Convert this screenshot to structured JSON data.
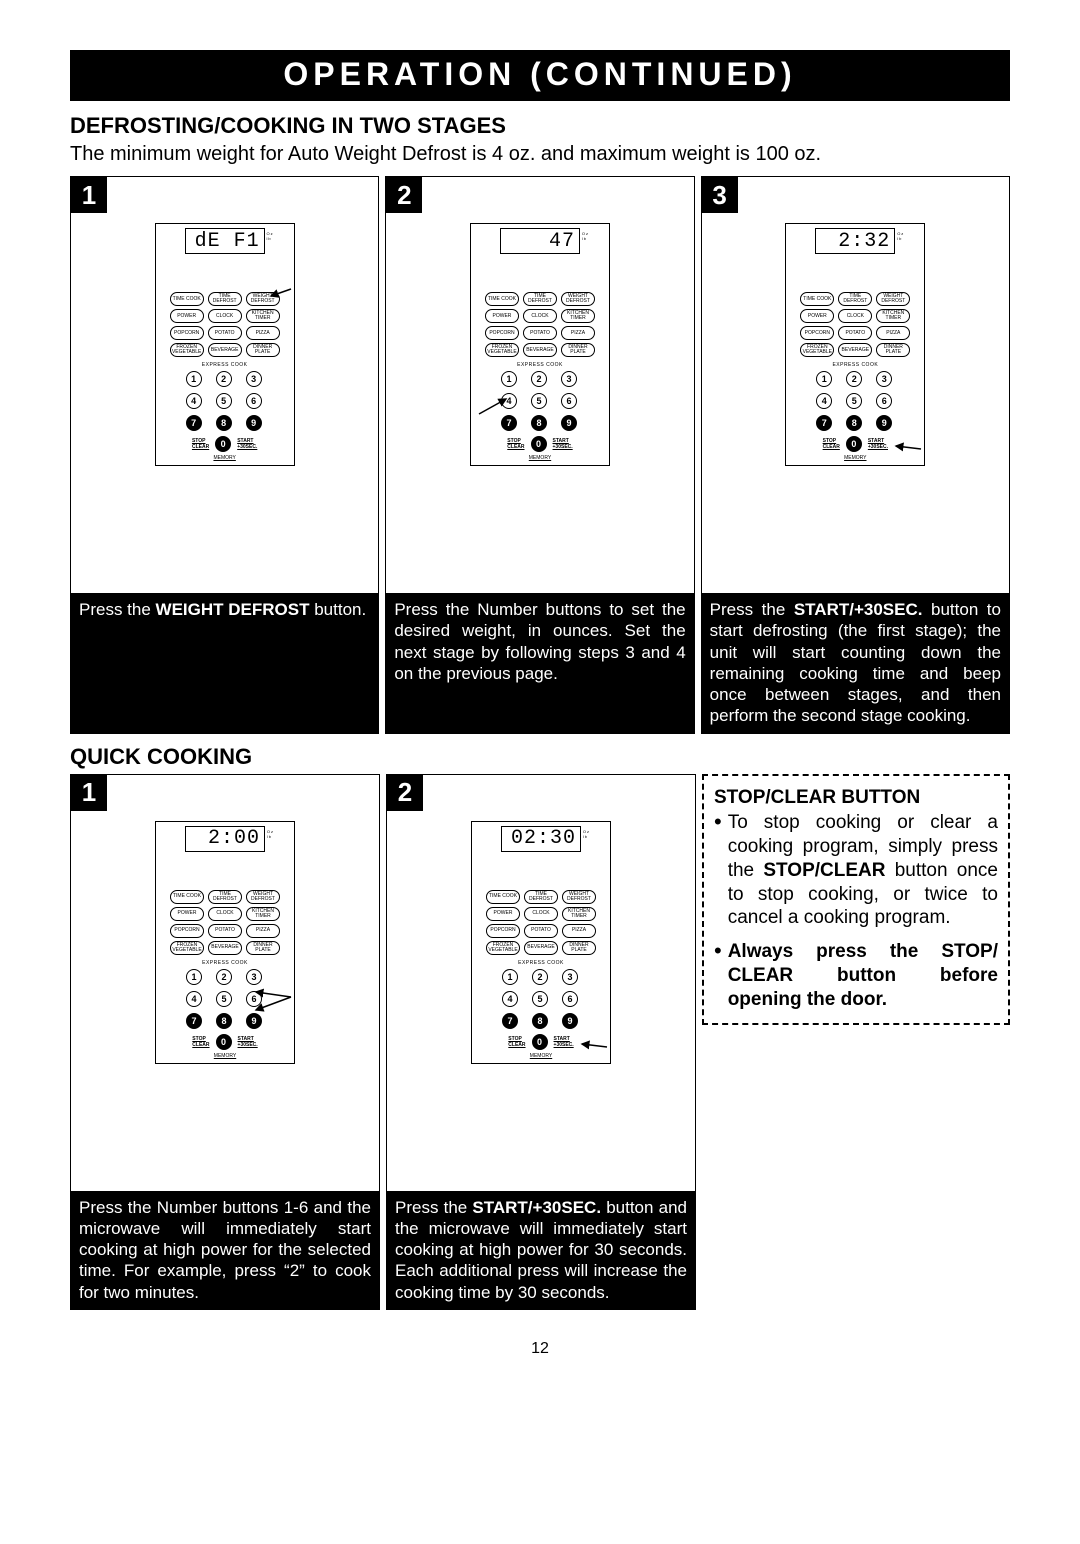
{
  "banner": "OPERATION  (CONTINUED)",
  "section1_title": "DEFROSTING/COOKING IN TWO STAGES",
  "section1_intro": "The minimum weight for Auto Weight Defrost is 4 oz. and maximum weight is 100 oz.",
  "section2_title": "QUICK COOKING",
  "page_number": "12",
  "keypad_rows": {
    "r1": [
      "TIME COOK",
      "TIME DEFROST",
      "WEIGHT DEFROST"
    ],
    "r2": [
      "POWER",
      "CLOCK",
      "KITCHEN TIMER"
    ],
    "r3": [
      "POPCORN",
      "POTATO",
      "PIZZA"
    ],
    "r4": [
      "FROZEN VEGETABLE",
      "BEVERAGE",
      "DINNER PLATE"
    ],
    "express": "EXPRESS COOK",
    "stop": "STOP CLEAR",
    "start": "START +30SEC.",
    "memory": "MEMORY"
  },
  "panels_a": [
    {
      "num": "1",
      "display": "dE F1",
      "caption_pre": "Press the ",
      "caption_bold": "WEIGHT DEFROST",
      "caption_post": " button."
    },
    {
      "num": "2",
      "display": "47",
      "caption_pre": "Press the Number buttons to set the desired weight, in ounces. Set the next stage by following steps 3 and 4 on the previous page.",
      "caption_bold": "",
      "caption_post": ""
    },
    {
      "num": "3",
      "display": "2:32",
      "caption_pre": "Press the ",
      "caption_bold": "START/+30SEC.",
      "caption_post": " button to start defrosting (the first stage); the unit will start counting down the remaining cooking time and beep once between stages, and then perform the second stage cooking."
    }
  ],
  "panels_b": [
    {
      "num": "1",
      "display": "2:00",
      "caption": "Press the Number buttons 1-6 and the microwave will immediately start cooking at high power for the selected time. For example, press “2” to cook for two minutes."
    },
    {
      "num": "2",
      "display": "02:30",
      "caption_pre": "Press the ",
      "caption_bold": "START/+30SEC.",
      "caption_post": " button and the microwave will immediately start cooking at high power for 30 seconds. Each additional press will increase the cooking time by 30 seconds."
    }
  ],
  "stopclear": {
    "title": "STOP/CLEAR BUTTON",
    "line1_pre": "To stop cooking or clear a cooking program, simply press the ",
    "line1_bold": "STOP/CLEAR",
    "line1_post": " button once to stop cooking, or twice to cancel a cooking program.",
    "line2": "Always press the STOP/ CLEAR button before opening the door."
  }
}
